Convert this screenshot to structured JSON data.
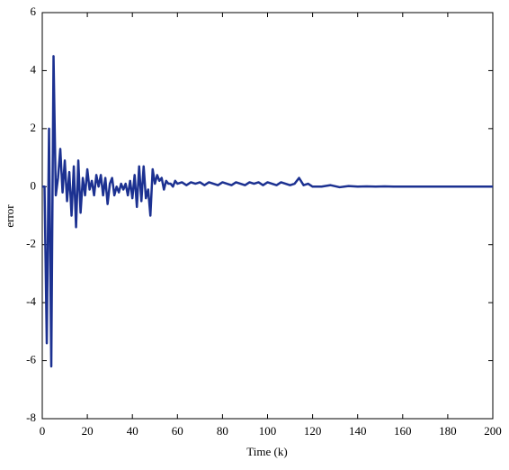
{
  "chart_data": {
    "type": "line",
    "xlabel": "Time (k)",
    "ylabel": "error",
    "color": "#1c3191",
    "x": [
      0,
      1,
      2,
      3,
      4,
      5,
      6,
      7,
      8,
      9,
      10,
      11,
      12,
      13,
      14,
      15,
      16,
      17,
      18,
      19,
      20,
      21,
      22,
      23,
      24,
      25,
      26,
      27,
      28,
      29,
      30,
      31,
      32,
      33,
      34,
      35,
      36,
      37,
      38,
      39,
      40,
      41,
      42,
      43,
      44,
      45,
      46,
      47,
      48,
      49,
      50,
      51,
      52,
      53,
      54,
      55,
      56,
      57,
      58,
      59,
      60,
      62,
      64,
      66,
      68,
      70,
      72,
      74,
      76,
      78,
      80,
      82,
      84,
      86,
      88,
      90,
      92,
      94,
      96,
      98,
      100,
      102,
      104,
      106,
      108,
      110,
      112,
      114,
      116,
      118,
      120,
      124,
      128,
      132,
      136,
      140,
      144,
      148,
      152,
      156,
      160,
      164,
      168,
      172,
      176,
      180,
      184,
      188,
      192,
      196,
      200
    ],
    "values": [
      0,
      0,
      -5.4,
      2.0,
      -6.2,
      4.5,
      -0.3,
      0.3,
      1.3,
      -0.2,
      0.9,
      -0.5,
      0.5,
      -1.0,
      0.7,
      -1.4,
      0.9,
      -0.9,
      0.3,
      -0.3,
      0.6,
      -0.1,
      0.2,
      -0.3,
      0.4,
      0.0,
      0.4,
      -0.3,
      0.3,
      -0.6,
      0.1,
      0.3,
      -0.3,
      0.0,
      -0.2,
      0.1,
      -0.1,
      0.1,
      -0.3,
      0.2,
      -0.4,
      0.4,
      -0.7,
      0.7,
      -0.5,
      0.7,
      -0.4,
      -0.1,
      -1.0,
      0.6,
      0.1,
      0.4,
      0.2,
      0.3,
      -0.1,
      0.2,
      0.1,
      0.1,
      0.0,
      0.2,
      0.1,
      0.15,
      0.05,
      0.15,
      0.1,
      0.15,
      0.05,
      0.15,
      0.1,
      0.05,
      0.15,
      0.1,
      0.05,
      0.15,
      0.1,
      0.05,
      0.15,
      0.1,
      0.15,
      0.05,
      0.15,
      0.1,
      0.05,
      0.15,
      0.1,
      0.05,
      0.1,
      0.3,
      0.05,
      0.1,
      0.0,
      0.0,
      0.05,
      -0.02,
      0.02,
      0,
      0.01,
      0,
      0.01,
      0,
      0,
      0,
      0,
      0,
      0,
      0,
      0,
      0,
      0,
      0,
      0
    ],
    "xlim": [
      0,
      200
    ],
    "xticks": [
      0,
      20,
      40,
      60,
      80,
      100,
      120,
      140,
      160,
      180,
      200
    ],
    "ylim": [
      -8,
      6
    ],
    "yticks": [
      -8,
      -6,
      -4,
      -2,
      0,
      2,
      4,
      6
    ]
  }
}
